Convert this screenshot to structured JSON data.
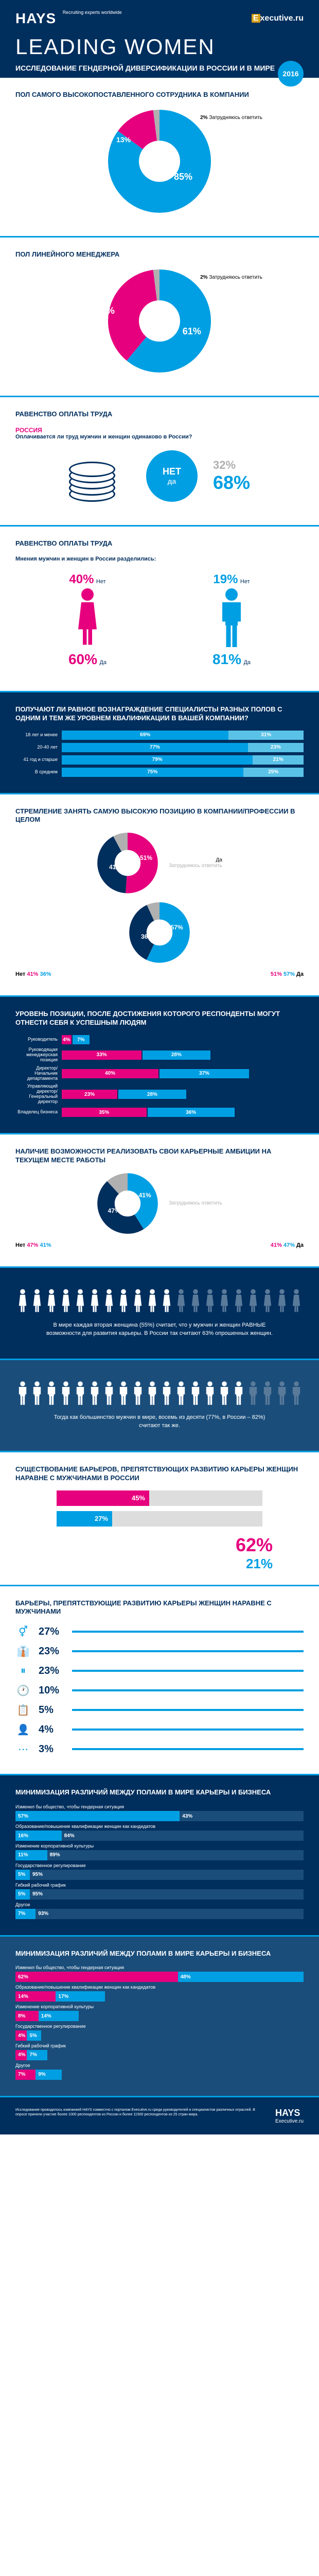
{
  "header": {
    "brand": "HAYS",
    "brand_sub": "Recruiting experts worldwide",
    "partner": "Executive.ru",
    "title": "LEADING WOMEN",
    "subtitle": "ИССЛЕДОВАНИЕ ГЕНДЕРНОЙ ДИВЕРСИФИКАЦИИ В РОССИИ И В МИРЕ",
    "year": "2016"
  },
  "colors": {
    "navy": "#002e5d",
    "blue": "#009fe3",
    "pink": "#e6007e",
    "gray": "#b0b0b0",
    "midblue": "#1a4d7a",
    "lightblue": "#5bc2e7"
  },
  "s1": {
    "title": "ПОЛ САМОГО ВЫСОКОПОСТАВЛЕННОГО СОТРУДНИКА В КОМПАНИИ",
    "slices": [
      {
        "v": 85,
        "c": "#009fe3",
        "label": "85%"
      },
      {
        "v": 13,
        "c": "#e6007e",
        "label": "13%"
      },
      {
        "v": 2,
        "c": "#b0b0b0",
        "label": "2%"
      }
    ],
    "note": "Затрудняюсь ответить"
  },
  "s2": {
    "title": "ПОЛ ЛИНЕЙНОГО МЕНЕДЖЕРА",
    "slices": [
      {
        "v": 61,
        "c": "#009fe3",
        "label": "61%"
      },
      {
        "v": 37,
        "c": "#e6007e",
        "label": "37%"
      },
      {
        "v": 2,
        "c": "#b0b0b0",
        "label": "2%"
      }
    ],
    "note": "Затрудняюсь ответить"
  },
  "s3": {
    "title": "РАВЕНСТВО ОПЛАТЫ ТРУДА",
    "tag": "РОССИЯ",
    "q": "Оплачивается ли труд мужчин и женщин одинаково в России?",
    "no": "НЕТ",
    "yes": "да",
    "no_pct": "32%",
    "yes_pct": "68%"
  },
  "s4": {
    "title": "РАВЕНСТВО ОПЛАТЫ ТРУДА",
    "q": "Мнения мужчин и женщин в России разделились:",
    "f_no": "40%",
    "f_yes": "60%",
    "m_no": "19%",
    "m_yes": "81%",
    "no_lbl": "Нет",
    "yes_lbl": "Да"
  },
  "s5": {
    "title": "ПОЛУЧАЮТ ЛИ РАВНОЕ ВОЗНАГРАЖДЕНИЕ СПЕЦИАЛИСТЫ РАЗНЫХ ПОЛОВ С ОДНИМ И ТЕМ ЖЕ УРОВНЕМ КВАЛИФИКАЦИИ В ВАШЕЙ КОМПАНИИ?",
    "legend": [
      "Да",
      "Нет"
    ],
    "rows": [
      {
        "label": "18 лет и менее",
        "da": 69,
        "net": 31
      },
      {
        "label": "20-40 лет",
        "da": 77,
        "net": 23
      },
      {
        "label": "41 год и старше",
        "da": 79,
        "net": 21
      },
      {
        "label": "В среднем",
        "da": 75,
        "net": 25
      }
    ]
  },
  "s6": {
    "title": "СТРЕМЛЕНИЕ ЗАНЯТЬ САМУЮ ВЫСОКУЮ ПОЗИЦИЮ В КОМПАНИИ/ПРОФЕССИИ В ЦЕЛОМ",
    "legend_note": "Затрудняюсь ответить",
    "d1": {
      "da": 51,
      "net": 41,
      "dk": 8
    },
    "d2": {
      "da": 57,
      "net": 36,
      "dk": 7
    },
    "yn": {
      "net_l": "Нет",
      "da_l": "Да",
      "f_net": "41%",
      "f_da": "51%",
      "m_net": "36%",
      "m_da": "57%"
    }
  },
  "s7": {
    "title": "УРОВЕНЬ ПОЗИЦИИ, ПОСЛЕ ДОСТИЖЕНИЯ КОТОРОГО РЕСПОНДЕНТЫ МОГУТ ОТНЕСТИ СЕБЯ К УСПЕШНЫМ ЛЮДЯМ",
    "rows": [
      {
        "label": "Руководитель",
        "a": 4,
        "b": 7
      },
      {
        "label": "Руководящая менеджерская позиция",
        "a": 33,
        "b": 28
      },
      {
        "label": "Директор/Начальник департамента",
        "a": 40,
        "b": 37
      },
      {
        "label": "Управляющий директор/Генеральный директор",
        "a": 23,
        "b": 28
      },
      {
        "label": "Владелец бизнеса",
        "a": 35,
        "b": 36
      }
    ]
  },
  "s8": {
    "title": "НАЛИЧИЕ ВОЗМОЖНОСТИ РЕАЛИЗОВАТЬ СВОИ КАРЬЕРНЫЕ АМБИЦИИ НА ТЕКУЩЕМ МЕСТЕ РАБОТЫ",
    "legend_note": "Затрудняюсь ответить",
    "d": {
      "da": 41,
      "net": 47,
      "dk": 12
    },
    "f": {
      "net": "47%",
      "da": "41%"
    },
    "m": {
      "net": "41%",
      "da": "47%"
    },
    "net_l": "Нет",
    "da_l": "Да"
  },
  "s9": {
    "text": "В мире каждая вторая женщина (55%) считает, что у мужчин и женщин РАВНЫЕ возможности для развития карьеры. В России так считают 63% опрошенных женщин."
  },
  "s10": {
    "text": "Тогда как большинство мужчин в мире, восемь из десяти (77%, в России – 82%) считают так же."
  },
  "s11": {
    "title": "СУЩЕСТВОВАНИЕ БАРЬЕРОВ, ПРЕПЯТСТВУЮЩИХ РАЗВИТИЮ КАРЬЕРЫ ЖЕНЩИН НАРАВНЕ С МУЖЧИНАМИ В РОССИИ",
    "rows": [
      {
        "label": "",
        "v": 45,
        "c": "#e6007e"
      },
      {
        "label": "",
        "v": 27,
        "c": "#009fe3"
      }
    ],
    "big": [
      {
        "v": "62%",
        "c": "#e6007e"
      },
      {
        "v": "21%",
        "c": "#009fe3"
      }
    ]
  },
  "s12": {
    "title": "БАРЬЕРЫ, ПРЕПЯТСТВУЮЩИЕ РАЗВИТИЮ КАРЬЕРЫ ЖЕНЩИН НАРАВНЕ С МУЖЧИНАМИ",
    "rows": [
      {
        "icon": "⚥",
        "v": "27%"
      },
      {
        "icon": "👔",
        "v": "23%"
      },
      {
        "icon": "⏸",
        "v": "23%"
      },
      {
        "icon": "🕐",
        "v": "10%"
      },
      {
        "icon": "📋",
        "v": "5%"
      },
      {
        "icon": "👤",
        "v": "4%"
      },
      {
        "icon": "⋯",
        "v": "3%"
      }
    ]
  },
  "s13": {
    "title": "МИНИМИЗАЦИЯ РАЗЛИЧИЙ МЕЖДУ ПОЛАМИ В МИРЕ КАРЬЕРЫ И БИЗНЕСА",
    "rows": [
      {
        "label": "Изменил бы общество, чтобы гендерная ситуация",
        "a": 57,
        "b": 43
      },
      {
        "label": "Образование/повышение квалификации женщин как кандидатов",
        "a": 16,
        "b": 84
      },
      {
        "label": "Изменение корпоративной культуры",
        "a": 11,
        "b": 89
      },
      {
        "label": "Государственное регулирование",
        "a": 5,
        "b": 95
      },
      {
        "label": "Гибкий рабочий график",
        "a": 5,
        "b": 95
      },
      {
        "label": "Другое",
        "a": 7,
        "b": 93
      }
    ]
  },
  "s14": {
    "title": "МИНИМИЗАЦИЯ РАЗЛИЧИЙ МЕЖДУ ПОЛАМИ В МИРЕ КАРЬЕРЫ И БИЗНЕСА",
    "rows": [
      {
        "label": "Изменил бы общество, чтобы гендерная ситуация",
        "a": 62,
        "b": 48
      },
      {
        "label": "Образование/повышение квалификации женщин как кандидатов",
        "a": 14,
        "b": 17
      },
      {
        "label": "Изменение корпоративной культуры",
        "a": 8,
        "b": 14
      },
      {
        "label": "Государственное регулирование",
        "a": 4,
        "b": 5
      },
      {
        "label": "Гибкий рабочий график",
        "a": 4,
        "b": 7
      },
      {
        "label": "Другое",
        "a": 7,
        "b": 9
      }
    ]
  },
  "footer": {
    "text": "Исследование проводилось компанией HAYS совместно с порталом Executive.ru среди руководителей и специалистов различных отраслей. В опросе приняли участие более 1000 респондентов из России и более 11500 респондентов из 25 стран мира.",
    "brand": "HAYS",
    "partner": "Executive.ru"
  }
}
